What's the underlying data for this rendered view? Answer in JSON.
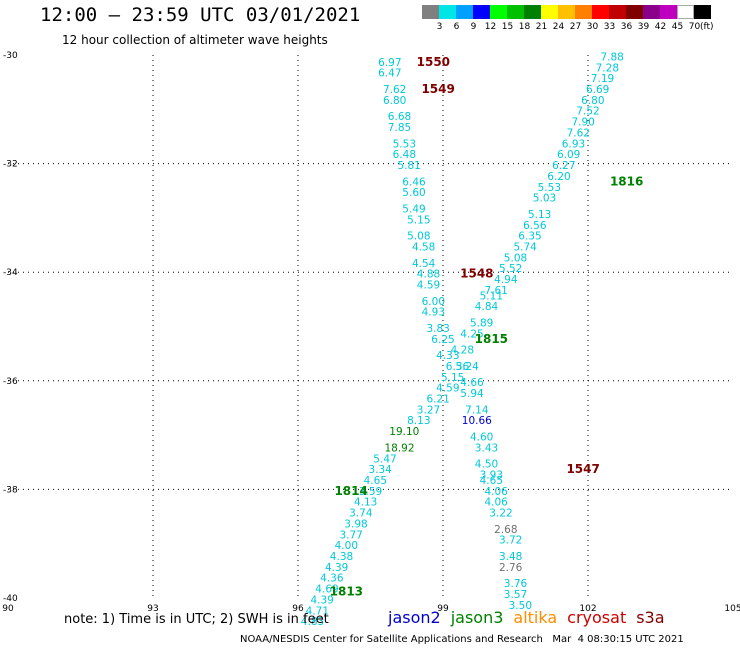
{
  "header": {
    "title": "12:00 – 23:59 UTC 03/01/2021",
    "subtitle": "12 hour collection of altimeter wave heights"
  },
  "colorbar": {
    "unit": "(ft)",
    "bins": [
      {
        "label": "3",
        "color": "#808080"
      },
      {
        "label": "6",
        "color": "#00e6e6"
      },
      {
        "label": "9",
        "color": "#00a0ff"
      },
      {
        "label": "12",
        "color": "#0000ff"
      },
      {
        "label": "15",
        "color": "#00ff00"
      },
      {
        "label": "18",
        "color": "#00c000"
      },
      {
        "label": "21",
        "color": "#008000"
      },
      {
        "label": "24",
        "color": "#ffff00"
      },
      {
        "label": "27",
        "color": "#ffc000"
      },
      {
        "label": "30",
        "color": "#ff8000"
      },
      {
        "label": "33",
        "color": "#ff0000"
      },
      {
        "label": "36",
        "color": "#c00000"
      },
      {
        "label": "39",
        "color": "#800000"
      },
      {
        "label": "42",
        "color": "#8b008b"
      },
      {
        "label": "45",
        "color": "#c000c0"
      },
      {
        "label": "70",
        "color": "#ffffff"
      },
      {
        "label": "",
        "color": "#000000"
      }
    ]
  },
  "chart_data": {
    "type": "scatter",
    "xlim": [
      90,
      105
    ],
    "ylim": [
      -40,
      -30
    ],
    "xticks": [
      {
        "v": 90,
        "t": "90"
      },
      {
        "v": 93,
        "t": "93"
      },
      {
        "v": 96,
        "t": "96"
      },
      {
        "v": 99,
        "t": "99"
      },
      {
        "v": 102,
        "t": "102"
      },
      {
        "v": 105,
        "t": "105"
      }
    ],
    "yticks": [
      {
        "v": -30,
        "t": "-30"
      },
      {
        "v": -32,
        "t": "-32"
      },
      {
        "v": -34,
        "t": "-34"
      },
      {
        "v": -36,
        "t": "-36"
      },
      {
        "v": -38,
        "t": "-38"
      },
      {
        "v": -40,
        "t": "-40"
      }
    ],
    "grid": true,
    "colors": {
      "cyan": "#00c8d8",
      "gray": "#707070",
      "blue": "#0000cc",
      "green": "#008000",
      "darkred": "#800000"
    },
    "pass_labels": [
      {
        "text": "1550",
        "x": 98.8,
        "y": -30.2,
        "c": "darkred"
      },
      {
        "text": "1549",
        "x": 98.9,
        "y": -30.7,
        "c": "darkred"
      },
      {
        "text": "1816",
        "x": 102.8,
        "y": -32.4,
        "c": "green"
      },
      {
        "text": "1548",
        "x": 99.7,
        "y": -34.1,
        "c": "darkred"
      },
      {
        "text": "1815",
        "x": 100.0,
        "y": -35.3,
        "c": "green"
      },
      {
        "text": "1547",
        "x": 101.9,
        "y": -37.7,
        "c": "darkred"
      },
      {
        "text": "1814",
        "x": 97.1,
        "y": -38.1,
        "c": "green"
      },
      {
        "text": "1813",
        "x": 97.0,
        "y": -39.95,
        "c": "green"
      }
    ],
    "points": [
      {
        "v": "6.97",
        "x": 97.9,
        "y": -30.2,
        "c": "cyan"
      },
      {
        "v": "6.47",
        "x": 97.9,
        "y": -30.4,
        "c": "cyan"
      },
      {
        "v": "7.62",
        "x": 98.0,
        "y": -30.7,
        "c": "cyan"
      },
      {
        "v": "6.80",
        "x": 98.0,
        "y": -30.9,
        "c": "cyan"
      },
      {
        "v": "6.68",
        "x": 98.1,
        "y": -31.2,
        "c": "cyan"
      },
      {
        "v": "7.85",
        "x": 98.1,
        "y": -31.4,
        "c": "cyan"
      },
      {
        "v": "5.53",
        "x": 98.2,
        "y": -31.7,
        "c": "cyan"
      },
      {
        "v": "6.48",
        "x": 98.2,
        "y": -31.9,
        "c": "cyan"
      },
      {
        "v": "5.81",
        "x": 98.3,
        "y": -32.1,
        "c": "cyan"
      },
      {
        "v": "6.46",
        "x": 98.4,
        "y": -32.4,
        "c": "cyan"
      },
      {
        "v": "5.60",
        "x": 98.4,
        "y": -32.6,
        "c": "cyan"
      },
      {
        "v": "5.49",
        "x": 98.4,
        "y": -32.9,
        "c": "cyan"
      },
      {
        "v": "5.15",
        "x": 98.5,
        "y": -33.1,
        "c": "cyan"
      },
      {
        "v": "5.08",
        "x": 98.5,
        "y": -33.4,
        "c": "cyan"
      },
      {
        "v": "4.58",
        "x": 98.6,
        "y": -33.6,
        "c": "cyan"
      },
      {
        "v": "4.54",
        "x": 98.6,
        "y": -33.9,
        "c": "cyan"
      },
      {
        "v": "4.88",
        "x": 98.7,
        "y": -34.1,
        "c": "cyan"
      },
      {
        "v": "4.59",
        "x": 98.7,
        "y": -34.3,
        "c": "cyan"
      },
      {
        "v": "6.00",
        "x": 98.8,
        "y": -34.6,
        "c": "cyan"
      },
      {
        "v": "4.93",
        "x": 98.8,
        "y": -34.8,
        "c": "cyan"
      },
      {
        "v": "3.83",
        "x": 98.9,
        "y": -35.1,
        "c": "cyan"
      },
      {
        "v": "6.25",
        "x": 99.0,
        "y": -35.3,
        "c": "cyan"
      },
      {
        "v": "4.33",
        "x": 99.1,
        "y": -35.6,
        "c": "cyan"
      },
      {
        "v": "5.24",
        "x": 99.5,
        "y": -35.8,
        "c": "cyan"
      },
      {
        "v": "4.66",
        "x": 99.6,
        "y": -36.1,
        "c": "cyan"
      },
      {
        "v": "5.94",
        "x": 99.6,
        "y": -36.3,
        "c": "cyan"
      },
      {
        "v": "7.14",
        "x": 99.7,
        "y": -36.6,
        "c": "cyan"
      },
      {
        "v": "10.66",
        "x": 99.7,
        "y": -36.8,
        "c": "blue"
      },
      {
        "v": "4.60",
        "x": 99.8,
        "y": -37.1,
        "c": "cyan"
      },
      {
        "v": "3.43",
        "x": 99.9,
        "y": -37.3,
        "c": "cyan"
      },
      {
        "v": "4.50",
        "x": 99.9,
        "y": -37.6,
        "c": "cyan"
      },
      {
        "v": "3.93",
        "x": 100.0,
        "y": -37.8,
        "c": "cyan"
      },
      {
        "v": "4.65",
        "x": 100.0,
        "y": -37.9,
        "c": "cyan"
      },
      {
        "v": "4.06",
        "x": 100.1,
        "y": -38.1,
        "c": "cyan"
      },
      {
        "v": "4.06",
        "x": 100.1,
        "y": -38.3,
        "c": "cyan"
      },
      {
        "v": "3.22",
        "x": 100.2,
        "y": -38.5,
        "c": "cyan"
      },
      {
        "v": "2.68",
        "x": 100.3,
        "y": -38.8,
        "c": "gray"
      },
      {
        "v": "3.72",
        "x": 100.4,
        "y": -39.0,
        "c": "cyan"
      },
      {
        "v": "3.48",
        "x": 100.4,
        "y": -39.3,
        "c": "cyan"
      },
      {
        "v": "2.76",
        "x": 100.4,
        "y": -39.5,
        "c": "gray"
      },
      {
        "v": "3.76",
        "x": 100.5,
        "y": -39.8,
        "c": "cyan"
      },
      {
        "v": "3.57",
        "x": 100.5,
        "y": -40.0,
        "c": "cyan"
      },
      {
        "v": "3.50",
        "x": 100.6,
        "y": -40.2,
        "c": "cyan"
      },
      {
        "v": "7.88",
        "x": 102.5,
        "y": -30.1,
        "c": "cyan"
      },
      {
        "v": "7.28",
        "x": 102.4,
        "y": -30.3,
        "c": "cyan"
      },
      {
        "v": "7.19",
        "x": 102.3,
        "y": -30.5,
        "c": "cyan"
      },
      {
        "v": "6.69",
        "x": 102.2,
        "y": -30.7,
        "c": "cyan"
      },
      {
        "v": "6.80",
        "x": 102.1,
        "y": -30.9,
        "c": "cyan"
      },
      {
        "v": "7.52",
        "x": 102.0,
        "y": -31.1,
        "c": "cyan"
      },
      {
        "v": "7.90",
        "x": 101.9,
        "y": -31.3,
        "c": "cyan"
      },
      {
        "v": "7.62",
        "x": 101.8,
        "y": -31.5,
        "c": "cyan"
      },
      {
        "v": "6.93",
        "x": 101.7,
        "y": -31.7,
        "c": "cyan"
      },
      {
        "v": "6.09",
        "x": 101.6,
        "y": -31.9,
        "c": "cyan"
      },
      {
        "v": "6.27",
        "x": 101.5,
        "y": -32.1,
        "c": "cyan"
      },
      {
        "v": "6.20",
        "x": 101.4,
        "y": -32.3,
        "c": "cyan"
      },
      {
        "v": "5.53",
        "x": 101.2,
        "y": -32.5,
        "c": "cyan"
      },
      {
        "v": "5.03",
        "x": 101.1,
        "y": -32.7,
        "c": "cyan"
      },
      {
        "v": "5.13",
        "x": 101.0,
        "y": -33.0,
        "c": "cyan"
      },
      {
        "v": "6.56",
        "x": 100.9,
        "y": -33.2,
        "c": "cyan"
      },
      {
        "v": "6.35",
        "x": 100.8,
        "y": -33.4,
        "c": "cyan"
      },
      {
        "v": "5.74",
        "x": 100.7,
        "y": -33.6,
        "c": "cyan"
      },
      {
        "v": "5.08",
        "x": 100.5,
        "y": -33.8,
        "c": "cyan"
      },
      {
        "v": "5.52",
        "x": 100.4,
        "y": -34.0,
        "c": "cyan"
      },
      {
        "v": "4.94",
        "x": 100.3,
        "y": -34.2,
        "c": "cyan"
      },
      {
        "v": "7.61",
        "x": 100.1,
        "y": -34.4,
        "c": "cyan"
      },
      {
        "v": "5.11",
        "x": 100.0,
        "y": -34.5,
        "c": "cyan"
      },
      {
        "v": "4.84",
        "x": 99.9,
        "y": -34.7,
        "c": "cyan"
      },
      {
        "v": "5.89",
        "x": 99.8,
        "y": -35.0,
        "c": "cyan"
      },
      {
        "v": "4.25",
        "x": 99.6,
        "y": -35.2,
        "c": "cyan"
      },
      {
        "v": "4.28",
        "x": 99.4,
        "y": -35.5,
        "c": "cyan"
      },
      {
        "v": "6.36",
        "x": 99.3,
        "y": -35.8,
        "c": "cyan"
      },
      {
        "v": "5.15",
        "x": 99.2,
        "y": -36.0,
        "c": "cyan"
      },
      {
        "v": "4.59",
        "x": 99.1,
        "y": -36.2,
        "c": "cyan"
      },
      {
        "v": "6.21",
        "x": 98.9,
        "y": -36.4,
        "c": "cyan"
      },
      {
        "v": "3.27",
        "x": 98.7,
        "y": -36.6,
        "c": "cyan"
      },
      {
        "v": "8.13",
        "x": 98.5,
        "y": -36.8,
        "c": "cyan"
      },
      {
        "v": "19.10",
        "x": 98.2,
        "y": -37.0,
        "c": "green"
      },
      {
        "v": "18.92",
        "x": 98.1,
        "y": -37.3,
        "c": "green"
      },
      {
        "v": "5.47",
        "x": 97.8,
        "y": -37.5,
        "c": "cyan"
      },
      {
        "v": "3.34",
        "x": 97.7,
        "y": -37.7,
        "c": "cyan"
      },
      {
        "v": "4.65",
        "x": 97.6,
        "y": -37.9,
        "c": "cyan"
      },
      {
        "v": "3.59",
        "x": 97.5,
        "y": -38.1,
        "c": "cyan"
      },
      {
        "v": "4.13",
        "x": 97.4,
        "y": -38.3,
        "c": "cyan"
      },
      {
        "v": "3.74",
        "x": 97.3,
        "y": -38.5,
        "c": "cyan"
      },
      {
        "v": "3.98",
        "x": 97.2,
        "y": -38.7,
        "c": "cyan"
      },
      {
        "v": "3.77",
        "x": 97.1,
        "y": -38.9,
        "c": "cyan"
      },
      {
        "v": "4.00",
        "x": 97.0,
        "y": -39.1,
        "c": "cyan"
      },
      {
        "v": "4.38",
        "x": 96.9,
        "y": -39.3,
        "c": "cyan"
      },
      {
        "v": "4.39",
        "x": 96.8,
        "y": -39.5,
        "c": "cyan"
      },
      {
        "v": "4.36",
        "x": 96.7,
        "y": -39.7,
        "c": "cyan"
      },
      {
        "v": "4.69",
        "x": 96.6,
        "y": -39.9,
        "c": "cyan"
      },
      {
        "v": "4.39",
        "x": 96.5,
        "y": -40.1,
        "c": "cyan"
      },
      {
        "v": "4.71",
        "x": 96.4,
        "y": -40.3,
        "c": "cyan"
      },
      {
        "v": "4.83",
        "x": 96.3,
        "y": -40.5,
        "c": "cyan"
      }
    ]
  },
  "note": "note: 1) Time is in UTC; 2) SWH is in feet",
  "satellites": [
    {
      "name": "jason2",
      "color": "#0000cc"
    },
    {
      "name": "jason3",
      "color": "#008000"
    },
    {
      "name": "altika",
      "color": "#ff8c00"
    },
    {
      "name": "cryosat",
      "color": "#cc0000"
    },
    {
      "name": "s3a",
      "color": "#800000"
    }
  ],
  "footer": "NOAA/NESDIS Center for Satellite Applications and Research   Mar  4 08:30:15 UTC 2021"
}
